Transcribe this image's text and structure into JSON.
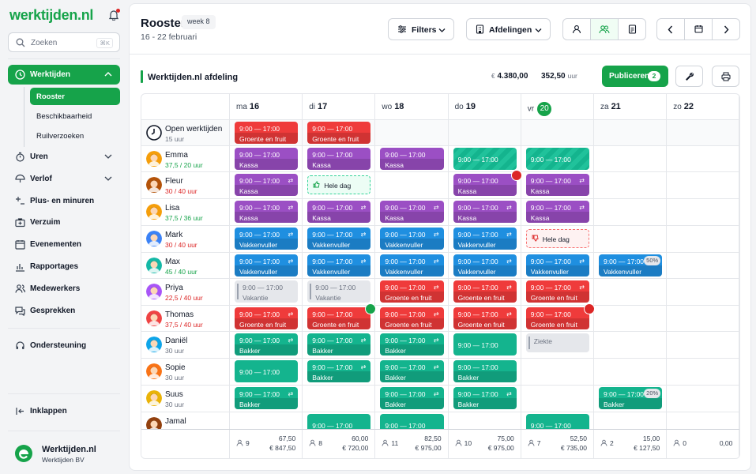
{
  "sidebar": {
    "logo": "werktijden.nl",
    "search": {
      "placeholder": "Zoeken",
      "shortcut": "⌘K"
    },
    "active_section": "Werktijden",
    "submenu": [
      "Rooster",
      "Beschikbaarheid",
      "Ruilverzoeken"
    ],
    "nav": [
      {
        "label": "Uren",
        "icon": "stopwatch-icon",
        "chev": true
      },
      {
        "label": "Verlof",
        "icon": "umbrella-icon",
        "chev": true
      },
      {
        "label": "Plus- en minuren",
        "icon": "plus-minus-icon",
        "chev": false
      },
      {
        "label": "Verzuim",
        "icon": "medical-bag-icon",
        "chev": false
      },
      {
        "label": "Evenementen",
        "icon": "calendar-icon",
        "chev": false
      },
      {
        "label": "Rapportages",
        "icon": "chart-icon",
        "chev": false
      },
      {
        "label": "Medewerkers",
        "icon": "users-icon",
        "chev": false
      },
      {
        "label": "Gesprekken",
        "icon": "chat-icon",
        "chev": false
      }
    ],
    "support": "Ondersteuning",
    "collapse": "Inklappen",
    "org": {
      "name": "Werktijden.nl",
      "sub": "Werktijden BV"
    }
  },
  "header": {
    "title": "Rooster",
    "week": "week 8",
    "range": "16 - 22 februari",
    "filters": "Filters",
    "departments": "Afdelingen"
  },
  "dept": {
    "name": "Werktijden.nl afdeling",
    "currency": "€",
    "cost": "4.380,00",
    "hours": "352,50",
    "hours_unit": "uur",
    "publish": "Publiceren",
    "publish_count": "2"
  },
  "days": [
    {
      "dow": "ma",
      "num": "16",
      "today": false
    },
    {
      "dow": "di",
      "num": "17",
      "today": false
    },
    {
      "dow": "wo",
      "num": "18",
      "today": false
    },
    {
      "dow": "do",
      "num": "19",
      "today": false
    },
    {
      "dow": "vr",
      "num": "20",
      "today": true
    },
    {
      "dow": "za",
      "num": "21",
      "today": false
    },
    {
      "dow": "zo",
      "num": "22",
      "today": false
    }
  ],
  "rows": [
    {
      "name": "Open werktijden",
      "sub": "15 uur",
      "sub_color": "#6b7280",
      "avatar": "clock-icon",
      "open": true
    },
    {
      "name": "Emma",
      "sub": "37,5 / 20 uur",
      "sub_color": "#16a34a",
      "avatar": "#f59e0b"
    },
    {
      "name": "Fleur",
      "sub": "30 / 40 uur",
      "sub_color": "#dc2626",
      "avatar": "#b45309"
    },
    {
      "name": "Lisa",
      "sub": "37,5 / 36 uur",
      "sub_color": "#16a34a",
      "avatar": "#f59e0b"
    },
    {
      "name": "Mark",
      "sub": "30 / 40 uur",
      "sub_color": "#dc2626",
      "avatar": "#3b82f6"
    },
    {
      "name": "Max",
      "sub": "45 / 40 uur",
      "sub_color": "#16a34a",
      "avatar": "#14b8a6"
    },
    {
      "name": "Priya",
      "sub": "22,5 / 40 uur",
      "sub_color": "#dc2626",
      "avatar": "#a855f7"
    },
    {
      "name": "Thomas",
      "sub": "37,5 / 40 uur",
      "sub_color": "#dc2626",
      "avatar": "#ef4444"
    },
    {
      "name": "Daniël",
      "sub": "30 uur",
      "sub_color": "#6b7280",
      "avatar": "#0ea5e9"
    },
    {
      "name": "Sopie",
      "sub": "30 uur",
      "sub_color": "#6b7280",
      "avatar": "#f97316"
    },
    {
      "name": "Suus",
      "sub": "30 uur",
      "sub_color": "#6b7280",
      "avatar": "#eab308"
    },
    {
      "name": "Jamal",
      "sub": "",
      "sub_color": "#6b7280",
      "avatar": "#92400e"
    }
  ],
  "shifts": [
    {
      "row": 0,
      "day": 0,
      "time": "9:00 — 17:00",
      "role": "Groente en fruit",
      "color": "red"
    },
    {
      "row": 0,
      "day": 1,
      "time": "9:00 — 17:00",
      "role": "Groente en fruit",
      "color": "red"
    },
    {
      "row": 1,
      "day": 0,
      "time": "9:00 — 17:00",
      "role": "Kassa",
      "color": "purple"
    },
    {
      "row": 1,
      "day": 1,
      "time": "9:00 — 17:00",
      "role": "Kassa",
      "color": "purple"
    },
    {
      "row": 1,
      "day": 2,
      "time": "9:00 — 17:00",
      "role": "Kassa",
      "color": "purple"
    },
    {
      "row": 1,
      "day": 3,
      "time": "9:00 — 17:00",
      "role": "",
      "color": "hatched"
    },
    {
      "row": 1,
      "day": 4,
      "time": "9:00 — 17:00",
      "role": "",
      "color": "hatched"
    },
    {
      "row": 2,
      "day": 0,
      "time": "9:00 — 17:00",
      "role": "Kassa",
      "color": "purple",
      "rep": true
    },
    {
      "row": 2,
      "day": 1,
      "wholeday": "Hele dag",
      "kind": "green"
    },
    {
      "row": 2,
      "day": 3,
      "time": "9:00 — 17:00",
      "role": "Kassa",
      "color": "purple",
      "mark": "red"
    },
    {
      "row": 2,
      "day": 4,
      "time": "9:00 — 17:00",
      "role": "Kassa",
      "color": "purple",
      "rep": true
    },
    {
      "row": 3,
      "day": 0,
      "time": "9:00 — 17:00",
      "role": "Kassa",
      "color": "purple",
      "rep": true
    },
    {
      "row": 3,
      "day": 1,
      "time": "9:00 — 17:00",
      "role": "Kassa",
      "color": "purple",
      "rep": true
    },
    {
      "row": 3,
      "day": 2,
      "time": "9:00 — 17:00",
      "role": "Kassa",
      "color": "purple",
      "rep": true
    },
    {
      "row": 3,
      "day": 3,
      "time": "9:00 — 17:00",
      "role": "Kassa",
      "color": "purple",
      "rep": true
    },
    {
      "row": 3,
      "day": 4,
      "time": "9:00 — 17:00",
      "role": "Kassa",
      "color": "purple",
      "rep": true
    },
    {
      "row": 4,
      "day": 0,
      "time": "9:00 — 17:00",
      "role": "Vakkenvuller",
      "color": "blue",
      "rep": true
    },
    {
      "row": 4,
      "day": 1,
      "time": "9:00 — 17:00",
      "role": "Vakkenvuller",
      "color": "blue",
      "rep": true
    },
    {
      "row": 4,
      "day": 2,
      "time": "9:00 — 17:00",
      "role": "Vakkenvuller",
      "color": "blue",
      "rep": true
    },
    {
      "row": 4,
      "day": 3,
      "time": "9:00 — 17:00",
      "role": "Vakkenvuller",
      "color": "blue",
      "rep": true
    },
    {
      "row": 4,
      "day": 4,
      "wholeday": "Hele dag",
      "kind": "redd"
    },
    {
      "row": 5,
      "day": 0,
      "time": "9:00 — 17:00",
      "role": "Vakkenvuller",
      "color": "blue",
      "rep": true
    },
    {
      "row": 5,
      "day": 1,
      "time": "9:00 — 17:00",
      "role": "Vakkenvuller",
      "color": "blue",
      "rep": true
    },
    {
      "row": 5,
      "day": 2,
      "time": "9:00 — 17:00",
      "role": "Vakkenvuller",
      "color": "blue",
      "rep": true
    },
    {
      "row": 5,
      "day": 3,
      "time": "9:00 — 17:00",
      "role": "Vakkenvuller",
      "color": "blue",
      "rep": true
    },
    {
      "row": 5,
      "day": 4,
      "time": "9:00 — 17:00",
      "role": "Vakkenvuller",
      "color": "blue",
      "rep": true
    },
    {
      "row": 5,
      "day": 5,
      "time": "9:00 — 17:00",
      "role": "Vakkenvuller",
      "color": "blue",
      "pct": "50%"
    },
    {
      "row": 6,
      "day": 0,
      "time": "9:00 — 17:00",
      "role": "Vakantie",
      "color": "gray"
    },
    {
      "row": 6,
      "day": 1,
      "time": "9:00 — 17:00",
      "role": "Vakantie",
      "color": "gray"
    },
    {
      "row": 6,
      "day": 2,
      "time": "9:00 — 17:00",
      "role": "Groente en fruit",
      "color": "red",
      "rep": true
    },
    {
      "row": 6,
      "day": 3,
      "time": "9:00 — 17:00",
      "role": "Groente en fruit",
      "color": "red",
      "rep": true
    },
    {
      "row": 6,
      "day": 4,
      "time": "9:00 — 17:00",
      "role": "Groente en fruit",
      "color": "red",
      "rep": true
    },
    {
      "row": 7,
      "day": 0,
      "time": "9:00 — 17:00",
      "role": "Groente en fruit",
      "color": "red",
      "rep": true
    },
    {
      "row": 7,
      "day": 1,
      "time": "9:00 — 17:00",
      "role": "Groente en fruit",
      "color": "red",
      "mark": "green"
    },
    {
      "row": 7,
      "day": 2,
      "time": "9:00 — 17:00",
      "role": "Groente en fruit",
      "color": "red",
      "rep": true
    },
    {
      "row": 7,
      "day": 3,
      "time": "9:00 — 17:00",
      "role": "Groente en fruit",
      "color": "red",
      "rep": true
    },
    {
      "row": 7,
      "day": 4,
      "time": "9:00 — 17:00",
      "role": "Groente en fruit",
      "color": "red",
      "mark": "red"
    },
    {
      "row": 8,
      "day": 0,
      "time": "9:00 — 17:00",
      "role": "Bakker",
      "color": "teal",
      "rep": true
    },
    {
      "row": 8,
      "day": 1,
      "time": "9:00 — 17:00",
      "role": "Bakker",
      "color": "teal",
      "rep": true
    },
    {
      "row": 8,
      "day": 2,
      "time": "9:00 — 17:00",
      "role": "Bakker",
      "color": "teal",
      "rep": true
    },
    {
      "row": 8,
      "day": 3,
      "time": "9:00 — 17:00",
      "role": "",
      "color": "teal"
    },
    {
      "row": 8,
      "day": 4,
      "time": "Ziekte",
      "role": "",
      "color": "ziekte"
    },
    {
      "row": 9,
      "day": 0,
      "time": "9:00 — 17:00",
      "role": "",
      "color": "teal"
    },
    {
      "row": 9,
      "day": 1,
      "time": "9:00 — 17:00",
      "role": "Bakker",
      "color": "teal",
      "rep": true
    },
    {
      "row": 9,
      "day": 2,
      "time": "9:00 — 17:00",
      "role": "Bakker",
      "color": "teal",
      "rep": true
    },
    {
      "row": 9,
      "day": 3,
      "time": "9:00 — 17:00",
      "role": "Bakker",
      "color": "teal"
    },
    {
      "row": 10,
      "day": 0,
      "time": "9:00 — 17:00",
      "role": "Bakker",
      "color": "teal",
      "rep": true
    },
    {
      "row": 10,
      "day": 2,
      "time": "9:00 — 17:00",
      "role": "Bakker",
      "color": "teal",
      "rep": true
    },
    {
      "row": 10,
      "day": 3,
      "time": "9:00 — 17:00",
      "role": "Bakker",
      "color": "teal",
      "rep": true
    },
    {
      "row": 10,
      "day": 5,
      "time": "9:00 — 17:00",
      "role": "Bakker",
      "color": "teal",
      "pct": "20%"
    },
    {
      "row": 11,
      "day": 1,
      "time": "9:00 — 17:00",
      "role": "",
      "color": "teal"
    },
    {
      "row": 11,
      "day": 2,
      "time": "9:00 — 17:00",
      "role": "",
      "color": "teal"
    },
    {
      "row": 11,
      "day": 4,
      "time": "9:00 — 17:00",
      "role": "",
      "color": "teal"
    }
  ],
  "footer": [
    {
      "people": "9",
      "hours": "67,50",
      "cost": "€ 847,50"
    },
    {
      "people": "8",
      "hours": "60,00",
      "cost": "€ 720,00"
    },
    {
      "people": "11",
      "hours": "82,50",
      "cost": "€ 975,00"
    },
    {
      "people": "10",
      "hours": "75,00",
      "cost": "€ 975,00"
    },
    {
      "people": "7",
      "hours": "52,50",
      "cost": "€ 735,00"
    },
    {
      "people": "2",
      "hours": "15,00",
      "cost": "€ 127,50"
    },
    {
      "people": "0",
      "hours": "0,00",
      "cost": ""
    }
  ]
}
